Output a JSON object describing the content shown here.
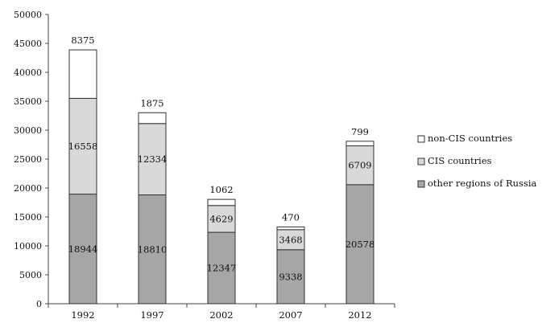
{
  "chart_data": {
    "type": "bar",
    "stacked": true,
    "title": "",
    "xlabel": "",
    "ylabel": "",
    "categories": [
      "1992",
      "1997",
      "2002",
      "2007",
      "2012"
    ],
    "ylim": [
      0,
      50000
    ],
    "ytick_step": 5000,
    "yticks": [
      "0",
      "5000",
      "10000",
      "15000",
      "20000",
      "25000",
      "30000",
      "35000",
      "40000",
      "45000",
      "50000"
    ],
    "grid": false,
    "legend_position": "right",
    "series": [
      {
        "name": "other regions of Russia",
        "color": "#a6a6a6",
        "values": [
          18944,
          18810,
          12347,
          9338,
          20578
        ]
      },
      {
        "name": "CIS countries",
        "color": "#d9d9d9",
        "values": [
          16558,
          12334,
          4629,
          3468,
          6709
        ]
      },
      {
        "name": "non-CIS countries",
        "color": "#ffffff",
        "values": [
          8375,
          1875,
          1062,
          470,
          799
        ]
      }
    ],
    "legend_order": [
      2,
      1,
      0
    ]
  }
}
